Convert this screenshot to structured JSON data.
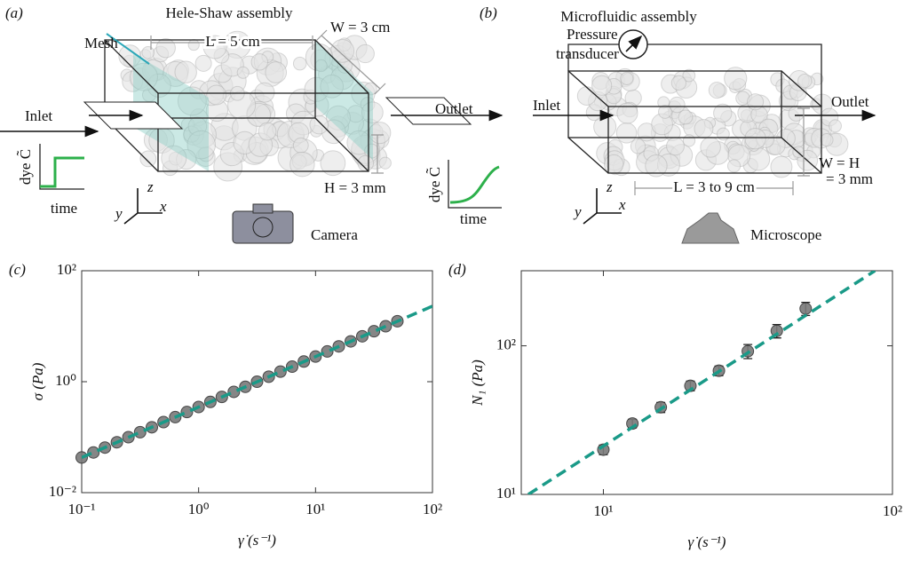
{
  "panels": [
    {
      "label": "(a)",
      "title": "Hele-Shaw assembly",
      "mesh": "Mesh",
      "length": "L = 5 cm",
      "width": "W = 3 cm",
      "inlet": "Inlet",
      "outlet": "Outlet",
      "height": "H = 3 mm",
      "inlet_plot": {
        "ylabel": "dye C̃",
        "xlabel": "time"
      },
      "outlet_plot": {
        "ylabel": "dye C̃",
        "xlabel": "time"
      },
      "axes": [
        "z",
        "y",
        "x"
      ],
      "camera": "Camera"
    },
    {
      "label": "(b)",
      "title": "Microfluidic assembly",
      "transducer": [
        "Pressure",
        "transducer"
      ],
      "inlet": "Inlet",
      "outlet": "Outlet",
      "height": [
        "W = H",
        "= 3 mm"
      ],
      "length": "L = 3 to 9 cm",
      "axes": [
        "z",
        "y",
        "x"
      ],
      "microscope": "Microscope"
    }
  ],
  "chart_data": [
    {
      "type": "scatter",
      "label": "(c)",
      "xlabel": "γ̇ (s⁻¹)",
      "ylabel": "σ (Pa)",
      "log_x": true,
      "log_y": true,
      "xlim": [
        0.1,
        100
      ],
      "ylim": [
        0.01,
        100
      ],
      "xticks": [
        {
          "value": 0.1,
          "label": "10⁻¹"
        },
        {
          "value": 1,
          "label": "10⁰"
        },
        {
          "value": 10,
          "label": "10¹"
        },
        {
          "value": 100,
          "label": "10²"
        }
      ],
      "yticks": [
        {
          "value": 0.01,
          "label": "10⁻²"
        },
        {
          "value": 1,
          "label": "10⁰"
        },
        {
          "value": 100,
          "label": "10²"
        }
      ],
      "series": [
        {
          "color": "#7a7a7a",
          "marker": "circle",
          "x": [
            0.1,
            0.126,
            0.158,
            0.2,
            0.251,
            0.316,
            0.398,
            0.501,
            0.631,
            0.794,
            1,
            1.26,
            1.58,
            2,
            2.51,
            3.16,
            3.98,
            5.01,
            6.31,
            7.94,
            10,
            12.6,
            15.8,
            20,
            25.1,
            31.6,
            39.8,
            50.1
          ],
          "values": [
            0.043,
            0.053,
            0.065,
            0.081,
            0.1,
            0.123,
            0.151,
            0.187,
            0.23,
            0.284,
            0.35,
            0.432,
            0.532,
            0.656,
            0.809,
            1.0,
            1.23,
            1.52,
            1.87,
            2.31,
            2.84,
            3.51,
            4.33,
            5.33,
            6.58,
            8.11,
            10.0,
            12.3
          ]
        },
        {
          "color": "#1a9a88",
          "line_style": "dashed",
          "x": [
            0.1,
            100
          ],
          "values": [
            0.043,
            23
          ]
        }
      ]
    },
    {
      "type": "scatter",
      "label": "(d)",
      "xlabel": "γ̇ (s⁻¹)",
      "ylabel": "N₁ (Pa)",
      "log_x": true,
      "log_y": true,
      "xlim": [
        5.2,
        100
      ],
      "ylim": [
        10,
        320
      ],
      "xticks": [
        {
          "value": 10,
          "label": "10¹"
        },
        {
          "value": 100,
          "label": "10²"
        }
      ],
      "yticks": [
        {
          "value": 10,
          "label": "10¹"
        },
        {
          "value": 100,
          "label": "10²"
        }
      ],
      "series": [
        {
          "color": "#7a7a7a",
          "marker": "circle",
          "x": [
            10,
            12.6,
            15.8,
            20,
            25.1,
            31.6,
            39.8,
            50.1
          ],
          "values": [
            20,
            30,
            38.6,
            53.8,
            68,
            92,
            126,
            178
          ],
          "errors": [
            1.5,
            2,
            3,
            4,
            5,
            10,
            13,
            18
          ]
        },
        {
          "color": "#1a9a88",
          "line_style": "dashed",
          "x": [
            5.5,
            87
          ],
          "values": [
            10,
            320
          ]
        }
      ]
    }
  ]
}
